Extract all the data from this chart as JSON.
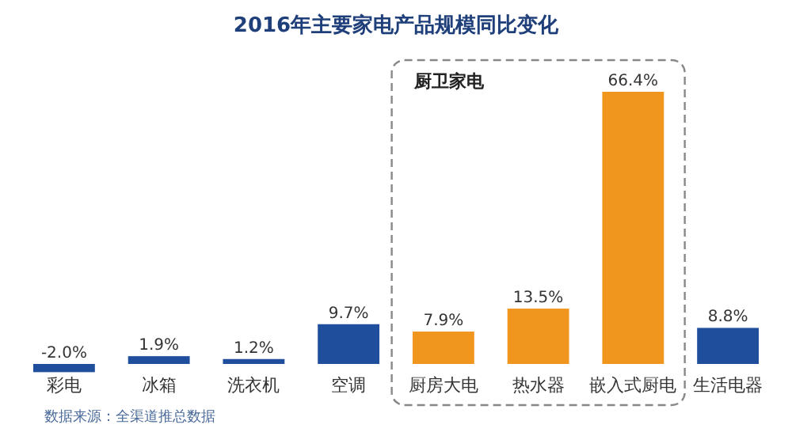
{
  "chart_data": {
    "type": "bar",
    "title": "2016年主要家电产品规模同比变化",
    "categories": [
      "彩电",
      "冰箱",
      "洗衣机",
      "空调",
      "厨房大电",
      "热水器",
      "嵌入式厨电",
      "生活电器"
    ],
    "values": [
      -2.0,
      1.9,
      1.2,
      9.7,
      7.9,
      13.5,
      66.4,
      8.8
    ],
    "colors": [
      "#1f4e9c",
      "#1f4e9c",
      "#1f4e9c",
      "#1f4e9c",
      "#f0961e",
      "#f0961e",
      "#f0961e",
      "#1f4e9c"
    ],
    "value_labels": [
      "-2.0%",
      "1.9%",
      "1.2%",
      "9.7%",
      "7.9%",
      "13.5%",
      "66.4%",
      "8.8%"
    ],
    "annotations": [
      "厨卫家电",
      "数据来源：全渠道推总数据"
    ],
    "grid": false
  }
}
